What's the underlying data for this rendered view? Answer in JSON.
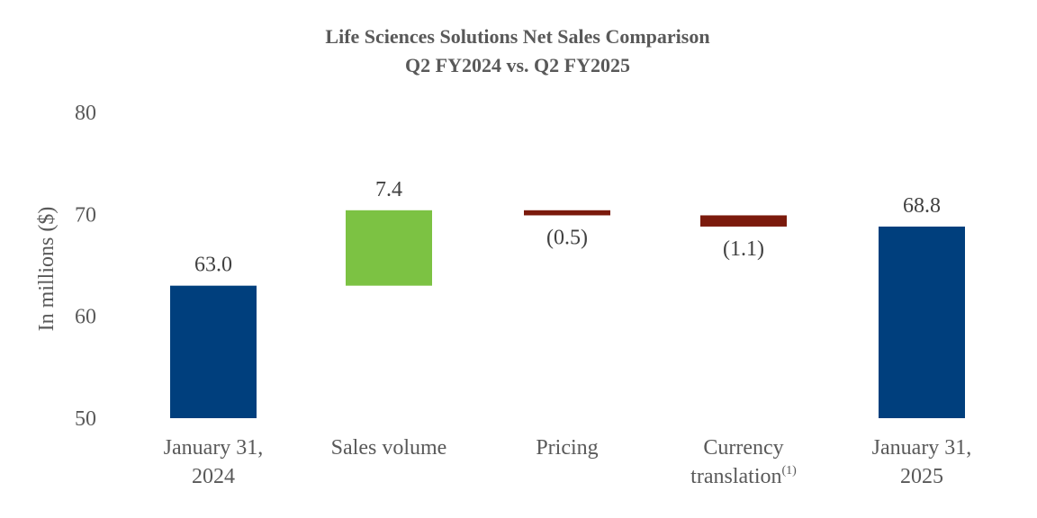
{
  "chart_data": {
    "type": "bar",
    "subtype": "waterfall",
    "title": "Life Sciences Solutions Net Sales Comparison",
    "subtitle": "Q2 FY2024 vs. Q2 FY2025",
    "ylabel": "In millions ($)",
    "ylim": [
      50,
      80
    ],
    "yticks": [
      "50",
      "60",
      "70",
      "80"
    ],
    "grid": false,
    "categories": [
      {
        "lines": [
          "January 31,",
          "2024"
        ],
        "superscript": ""
      },
      {
        "lines": [
          "Sales volume"
        ],
        "superscript": ""
      },
      {
        "lines": [
          "Pricing"
        ],
        "superscript": ""
      },
      {
        "lines": [
          "Currency",
          "translation"
        ],
        "superscript": "(1)"
      },
      {
        "lines": [
          "January 31,",
          "2025"
        ],
        "superscript": ""
      }
    ],
    "bars": [
      {
        "kind": "total",
        "start": 0,
        "end": 63.0,
        "label": "63.0",
        "color": "#003f7d"
      },
      {
        "kind": "increase",
        "start": 63.0,
        "end": 70.4,
        "label": "7.4",
        "color": "#7cc243"
      },
      {
        "kind": "decrease",
        "start": 70.4,
        "end": 69.9,
        "label": "(0.5)",
        "color": "#7b1a0c"
      },
      {
        "kind": "decrease",
        "start": 69.9,
        "end": 68.8,
        "label": "(1.1)",
        "color": "#7b1a0c"
      },
      {
        "kind": "total",
        "start": 0,
        "end": 68.8,
        "label": "68.8",
        "color": "#003f7d"
      }
    ]
  }
}
